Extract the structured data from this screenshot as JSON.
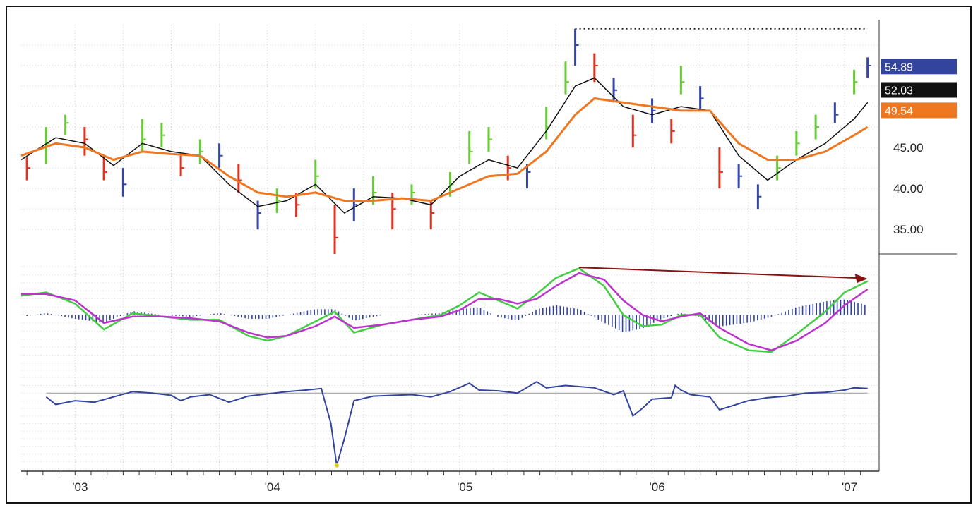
{
  "chart_data": [
    {
      "type": "ohlc",
      "panel": "price",
      "y_tick_labels": [
        "35.00",
        "40.00",
        "45.00"
      ],
      "ylim": [
        32,
        60
      ],
      "x_tick_labels": [
        "'03",
        "'04",
        "'05",
        "'06",
        "'07"
      ],
      "bar_colors": {
        "up": "#66cc33",
        "down": "#dd3322",
        "neutral": "#3344aa"
      },
      "bars": [
        {
          "t": 2002.75,
          "c": 42.5,
          "h": 43.8,
          "l": 41.0,
          "col": "red"
        },
        {
          "t": 2002.85,
          "c": 45.5,
          "h": 47.5,
          "l": 43.0,
          "col": "green"
        },
        {
          "t": 2002.95,
          "c": 48.0,
          "h": 49.0,
          "l": 46.5,
          "col": "green"
        },
        {
          "t": 2003.05,
          "c": 46.0,
          "h": 47.5,
          "l": 44.0,
          "col": "red"
        },
        {
          "t": 2003.15,
          "c": 42.0,
          "h": 44.0,
          "l": 41.0,
          "col": "red"
        },
        {
          "t": 2003.25,
          "c": 40.5,
          "h": 42.5,
          "l": 39.0,
          "col": "blue"
        },
        {
          "t": 2003.35,
          "c": 46.0,
          "h": 48.5,
          "l": 44.5,
          "col": "green"
        },
        {
          "t": 2003.45,
          "c": 46.5,
          "h": 48.0,
          "l": 45.0,
          "col": "green"
        },
        {
          "t": 2003.55,
          "c": 42.5,
          "h": 44.0,
          "l": 41.5,
          "col": "red"
        },
        {
          "t": 2003.65,
          "c": 44.5,
          "h": 46.0,
          "l": 43.0,
          "col": "green"
        },
        {
          "t": 2003.75,
          "c": 44.0,
          "h": 45.5,
          "l": 42.5,
          "col": "blue"
        },
        {
          "t": 2003.85,
          "c": 41.0,
          "h": 43.0,
          "l": 39.5,
          "col": "red"
        },
        {
          "t": 2003.95,
          "c": 37.0,
          "h": 38.5,
          "l": 35.0,
          "col": "blue"
        },
        {
          "t": 2004.05,
          "c": 38.5,
          "h": 40.0,
          "l": 37.0,
          "col": "green"
        },
        {
          "t": 2004.15,
          "c": 38.0,
          "h": 39.5,
          "l": 36.5,
          "col": "red"
        },
        {
          "t": 2004.25,
          "c": 41.5,
          "h": 43.5,
          "l": 40.0,
          "col": "green"
        },
        {
          "t": 2004.35,
          "c": 34.0,
          "h": 38.0,
          "l": 32.0,
          "col": "red"
        },
        {
          "t": 2004.45,
          "c": 38.0,
          "h": 40.0,
          "l": 36.0,
          "col": "blue"
        },
        {
          "t": 2004.55,
          "c": 39.5,
          "h": 41.5,
          "l": 38.0,
          "col": "green"
        },
        {
          "t": 2004.65,
          "c": 37.5,
          "h": 39.5,
          "l": 35.0,
          "col": "red"
        },
        {
          "t": 2004.75,
          "c": 39.5,
          "h": 40.5,
          "l": 38.0,
          "col": "green"
        },
        {
          "t": 2004.85,
          "c": 37.0,
          "h": 38.5,
          "l": 35.0,
          "col": "red"
        },
        {
          "t": 2004.95,
          "c": 40.5,
          "h": 42.0,
          "l": 39.0,
          "col": "green"
        },
        {
          "t": 2005.05,
          "c": 44.5,
          "h": 47.0,
          "l": 43.0,
          "col": "green"
        },
        {
          "t": 2005.15,
          "c": 46.0,
          "h": 47.5,
          "l": 44.5,
          "col": "green"
        },
        {
          "t": 2005.25,
          "c": 42.5,
          "h": 44.0,
          "l": 41.0,
          "col": "red"
        },
        {
          "t": 2005.35,
          "c": 42.0,
          "h": 43.0,
          "l": 40.0,
          "col": "blue"
        },
        {
          "t": 2005.45,
          "c": 47.5,
          "h": 50.0,
          "l": 46.0,
          "col": "green"
        },
        {
          "t": 2005.55,
          "c": 53.0,
          "h": 55.5,
          "l": 51.5,
          "col": "green"
        },
        {
          "t": 2005.6,
          "c": 57.5,
          "h": 59.5,
          "l": 55.0,
          "col": "blue"
        },
        {
          "t": 2005.7,
          "c": 55.0,
          "h": 56.5,
          "l": 53.0,
          "col": "red"
        },
        {
          "t": 2005.8,
          "c": 52.0,
          "h": 53.5,
          "l": 50.5,
          "col": "blue"
        },
        {
          "t": 2005.9,
          "c": 46.5,
          "h": 49.0,
          "l": 45.0,
          "col": "red"
        },
        {
          "t": 2006.0,
          "c": 49.5,
          "h": 51.0,
          "l": 48.0,
          "col": "blue"
        },
        {
          "t": 2006.1,
          "c": 47.0,
          "h": 48.5,
          "l": 45.5,
          "col": "red"
        },
        {
          "t": 2006.15,
          "c": 53.0,
          "h": 55.0,
          "l": 51.5,
          "col": "green"
        },
        {
          "t": 2006.25,
          "c": 51.0,
          "h": 52.5,
          "l": 49.5,
          "col": "blue"
        },
        {
          "t": 2006.35,
          "c": 42.0,
          "h": 45.0,
          "l": 40.0,
          "col": "red"
        },
        {
          "t": 2006.45,
          "c": 41.5,
          "h": 43.0,
          "l": 40.0,
          "col": "blue"
        },
        {
          "t": 2006.55,
          "c": 39.0,
          "h": 40.5,
          "l": 37.5,
          "col": "blue"
        },
        {
          "t": 2006.65,
          "c": 42.5,
          "h": 44.0,
          "l": 41.0,
          "col": "green"
        },
        {
          "t": 2006.75,
          "c": 45.5,
          "h": 47.0,
          "l": 44.0,
          "col": "green"
        },
        {
          "t": 2006.85,
          "c": 47.5,
          "h": 49.0,
          "l": 46.0,
          "col": "green"
        },
        {
          "t": 2006.95,
          "c": 49.0,
          "h": 50.5,
          "l": 48.0,
          "col": "blue"
        },
        {
          "t": 2007.05,
          "c": 53.0,
          "h": 54.5,
          "l": 51.5,
          "col": "green"
        },
        {
          "t": 2007.12,
          "c": 55.0,
          "h": 56.0,
          "l": 53.5,
          "col": "blue"
        }
      ],
      "series": [
        {
          "name": "",
          "color": "#111111",
          "last_value": "52.03",
          "x": [
            2002.72,
            2002.9,
            2003.05,
            2003.2,
            2003.35,
            2003.5,
            2003.65,
            2003.8,
            2003.95,
            2004.1,
            2004.25,
            2004.4,
            2004.55,
            2004.7,
            2004.85,
            2005.0,
            2005.15,
            2005.3,
            2005.45,
            2005.6,
            2005.7,
            2005.85,
            2006.0,
            2006.15,
            2006.3,
            2006.45,
            2006.6,
            2006.75,
            2006.9,
            2007.05,
            2007.12
          ],
          "y": [
            43.5,
            46.2,
            45.5,
            42.8,
            45.5,
            44.5,
            44.0,
            40.5,
            37.8,
            38.5,
            40.5,
            37.0,
            39.0,
            38.8,
            38.0,
            41.5,
            43.5,
            42.5,
            47.0,
            52.5,
            53.5,
            50.0,
            49.0,
            50.0,
            49.5,
            44.0,
            41.0,
            43.5,
            45.5,
            48.5,
            50.5
          ]
        },
        {
          "name": "",
          "color": "#ee7722",
          "last_value": "49.54",
          "x": [
            2002.72,
            2002.9,
            2003.05,
            2003.2,
            2003.35,
            2003.5,
            2003.65,
            2003.8,
            2003.95,
            2004.1,
            2004.25,
            2004.4,
            2004.55,
            2004.7,
            2004.85,
            2005.0,
            2005.15,
            2005.3,
            2005.45,
            2005.6,
            2005.7,
            2005.85,
            2006.0,
            2006.15,
            2006.3,
            2006.45,
            2006.6,
            2006.75,
            2006.9,
            2007.05,
            2007.12
          ],
          "y": [
            44.0,
            45.5,
            45.0,
            43.5,
            44.5,
            44.2,
            44.0,
            41.5,
            39.5,
            39.0,
            39.5,
            38.5,
            38.5,
            38.8,
            38.5,
            40.0,
            41.5,
            41.8,
            44.5,
            49.0,
            51.0,
            50.5,
            50.0,
            49.5,
            49.5,
            45.5,
            43.5,
            43.5,
            44.5,
            46.5,
            47.5
          ]
        }
      ],
      "price_tags": [
        {
          "value": "54.89",
          "y": 54.89,
          "color": "#33449e"
        },
        {
          "value": "52.03",
          "y": 52.03,
          "color": "#111111"
        },
        {
          "value": "49.54",
          "y": 49.54,
          "color": "#ee7722"
        }
      ],
      "high_line": {
        "y": 59.5,
        "x_from": 2005.6,
        "x_to": 2007.12,
        "style": "dotted"
      }
    },
    {
      "type": "line",
      "panel": "macd",
      "ylim": [
        -3,
        3
      ],
      "series": [
        {
          "name": "",
          "color": "#44cc44",
          "x": [
            2002.72,
            2002.85,
            2003.0,
            2003.15,
            2003.3,
            2003.45,
            2003.6,
            2003.75,
            2003.9,
            2004.0,
            2004.1,
            2004.25,
            2004.35,
            2004.45,
            2004.6,
            2004.75,
            2004.9,
            2005.0,
            2005.1,
            2005.2,
            2005.3,
            2005.4,
            2005.5,
            2005.62,
            2005.75,
            2005.85,
            2005.95,
            2006.05,
            2006.15,
            2006.25,
            2006.35,
            2006.5,
            2006.62,
            2006.75,
            2006.9,
            2007.0,
            2007.12
          ],
          "y": [
            1.2,
            1.4,
            0.7,
            -0.9,
            0.1,
            -0.1,
            -0.3,
            -0.3,
            -1.3,
            -1.6,
            -1.3,
            -0.4,
            0.2,
            -1.1,
            -0.6,
            -0.3,
            0.0,
            0.6,
            1.4,
            0.9,
            0.4,
            1.3,
            2.3,
            2.9,
            1.8,
            0.0,
            -0.7,
            -0.6,
            0.0,
            0.0,
            -1.4,
            -2.2,
            -2.3,
            -1.2,
            0.2,
            1.4,
            2.1
          ]
        },
        {
          "name": "",
          "color": "#bb33cc",
          "x": [
            2002.72,
            2002.85,
            2003.0,
            2003.15,
            2003.3,
            2003.45,
            2003.6,
            2003.75,
            2003.9,
            2004.0,
            2004.1,
            2004.25,
            2004.35,
            2004.45,
            2004.6,
            2004.75,
            2004.9,
            2005.0,
            2005.1,
            2005.2,
            2005.3,
            2005.4,
            2005.5,
            2005.62,
            2005.75,
            2005.85,
            2005.95,
            2006.05,
            2006.15,
            2006.25,
            2006.35,
            2006.5,
            2006.62,
            2006.75,
            2006.9,
            2007.0,
            2007.12
          ],
          "y": [
            1.3,
            1.3,
            0.9,
            -0.5,
            -0.1,
            -0.1,
            -0.2,
            -0.4,
            -1.1,
            -1.4,
            -1.3,
            -0.7,
            -0.1,
            -0.8,
            -0.6,
            -0.3,
            -0.1,
            0.3,
            1.0,
            1.0,
            0.7,
            1.0,
            1.8,
            2.6,
            2.2,
            0.9,
            0.0,
            -0.4,
            -0.1,
            0.1,
            -0.8,
            -1.8,
            -2.2,
            -1.6,
            -0.5,
            0.6,
            1.6
          ]
        }
      ],
      "histogram": {
        "color": "#33449e"
      },
      "arrow": {
        "color": "#881111",
        "x_from": 2005.62,
        "y_from": 2.95,
        "x_to": 2007.12,
        "y_to": 2.25
      }
    },
    {
      "type": "line",
      "panel": "indicator",
      "ylim": [
        -10,
        3
      ],
      "reference_line": {
        "y": 0,
        "color": "#999999"
      },
      "series": [
        {
          "name": "",
          "color": "#33449e",
          "x": [
            2002.85,
            2002.9,
            2003.0,
            2003.1,
            2003.2,
            2003.3,
            2003.4,
            2003.5,
            2003.55,
            2003.6,
            2003.7,
            2003.8,
            2003.9,
            2004.0,
            2004.1,
            2004.2,
            2004.28,
            2004.33,
            2004.36,
            2004.4,
            2004.45,
            2004.55,
            2004.65,
            2004.75,
            2004.85,
            2004.95,
            2005.05,
            2005.1,
            2005.2,
            2005.3,
            2005.4,
            2005.45,
            2005.55,
            2005.7,
            2005.8,
            2005.85,
            2005.9,
            2005.95,
            2006.0,
            2006.1,
            2006.12,
            2006.15,
            2006.2,
            2006.3,
            2006.35,
            2006.4,
            2006.5,
            2006.6,
            2006.7,
            2006.8,
            2006.9,
            2007.0,
            2007.05,
            2007.12
          ],
          "y": [
            -0.5,
            -1.5,
            -1.0,
            -1.2,
            -0.5,
            0.2,
            0.0,
            -0.3,
            -1.0,
            -0.5,
            -0.2,
            -1.2,
            -0.4,
            -0.1,
            0.2,
            0.4,
            0.6,
            -4.0,
            -9.5,
            -6.0,
            -1.0,
            -0.4,
            -0.3,
            -0.2,
            -0.5,
            0.2,
            1.3,
            0.4,
            0.3,
            0.0,
            1.5,
            0.7,
            1.0,
            0.7,
            -0.2,
            0.3,
            -3.0,
            -2.0,
            -0.8,
            -0.6,
            1.0,
            0.4,
            -0.2,
            -0.5,
            -2.2,
            -1.8,
            -1.0,
            -0.6,
            -0.4,
            0.0,
            0.1,
            0.4,
            0.7,
            0.6
          ]
        }
      ]
    }
  ]
}
